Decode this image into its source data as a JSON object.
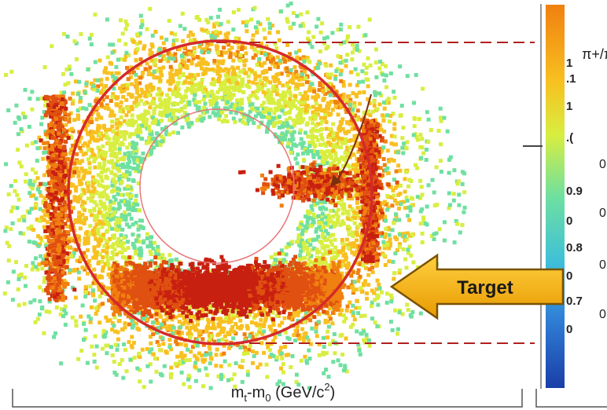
{
  "chart_data": {
    "type": "heatmap",
    "title": "",
    "xlabel": "m_t-m_0 (GeV/c^2)",
    "ylabel": "",
    "annotations": [
      {
        "text": "Target"
      }
    ],
    "colorbar": {
      "title": "π+/π-",
      "palette": [
        "#1a3ea8",
        "#2f7fd6",
        "#3fc0d8",
        "#6fe0a0",
        "#d8ee40",
        "#f8c020",
        "#f08010",
        "#e05010",
        "#c82010"
      ],
      "tick_labels_partial": [
        "1",
        ".1",
        "1",
        ".(",
        "0.9",
        "0",
        "0.8",
        "0",
        "0.7",
        "0"
      ],
      "side_labels_partial": [
        "0",
        "0",
        "0",
        "0"
      ]
    },
    "features": [
      {
        "name": "outer-ring",
        "color": "#d42a2a"
      },
      {
        "name": "inner-ring",
        "color": "#e87878"
      },
      {
        "name": "reference-lines",
        "style": "dashed",
        "color": "#b02020"
      }
    ]
  },
  "colors": {
    "arrow_fill": "#f5a800",
    "arrow_stroke": "#7a5200",
    "dashed_line": "#b02020",
    "ring": "#d42a2a"
  }
}
